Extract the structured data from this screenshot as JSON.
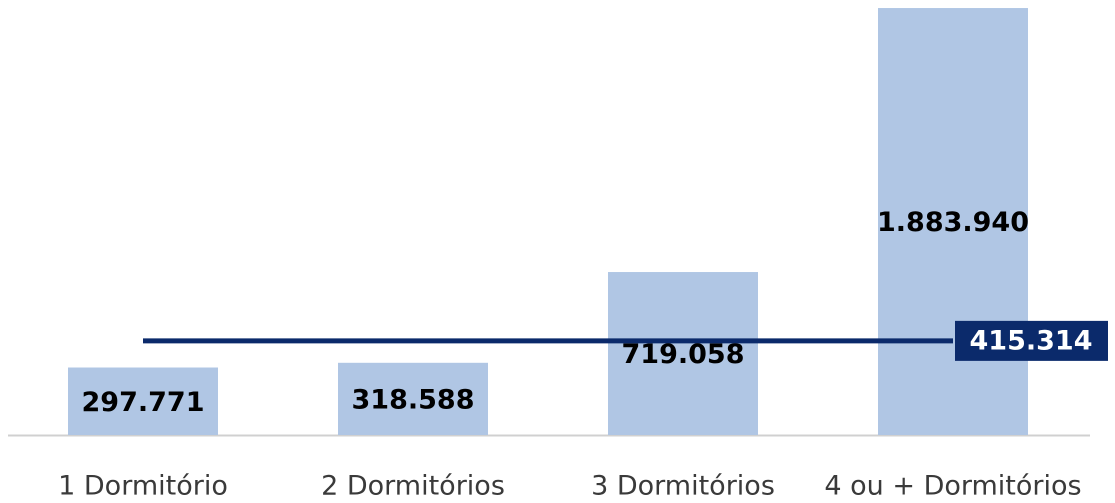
{
  "chart_data": {
    "type": "bar",
    "categories": [
      "1 Dormitório",
      "2 Dormitórios",
      "3 Dormitórios",
      "4 ou + Dormitórios"
    ],
    "series": [
      {
        "type": "bar",
        "color": "#b0c6e4",
        "values": [
          297771,
          318588,
          719058,
          1883940
        ],
        "value_labels": [
          "297.771",
          "318.588",
          "719.058",
          "1.883.940"
        ]
      },
      {
        "type": "line",
        "color": "#0b2a6b",
        "values": [
          415314,
          415314,
          415314,
          415314
        ],
        "value_labels": [
          null,
          null,
          null,
          "415.314"
        ]
      }
    ],
    "ylim": [
      0,
      1900000
    ]
  }
}
